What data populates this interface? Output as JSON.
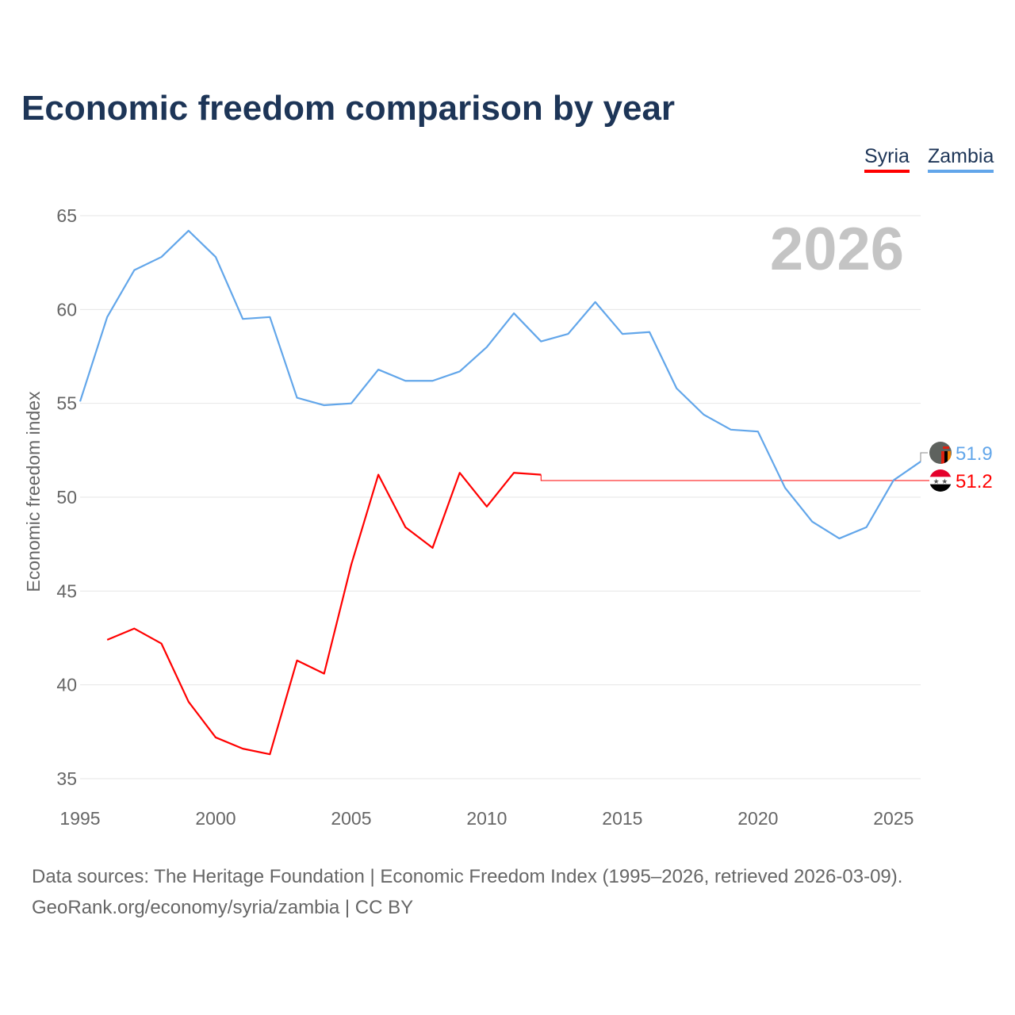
{
  "chart_data": {
    "type": "line",
    "title": "Economic freedom comparison by year",
    "xlabel": "",
    "ylabel": "Economic freedom index",
    "xlim": [
      1995,
      2026
    ],
    "ylim": [
      35,
      65
    ],
    "xticks": [
      1995,
      2000,
      2005,
      2010,
      2015,
      2020,
      2025
    ],
    "yticks": [
      35,
      40,
      45,
      50,
      55,
      60,
      65
    ],
    "grid": true,
    "legend_position": "top-right",
    "year_label": "2026",
    "series": [
      {
        "name": "Syria",
        "color": "#ff0000",
        "end_label": "51.2",
        "x": [
          1996,
          1997,
          1998,
          1999,
          2000,
          2001,
          2002,
          2003,
          2004,
          2005,
          2006,
          2007,
          2008,
          2009,
          2010,
          2011,
          2012
        ],
        "values": [
          42.4,
          43.0,
          42.2,
          39.1,
          37.2,
          36.6,
          36.3,
          41.3,
          40.6,
          46.4,
          51.2,
          48.4,
          47.3,
          51.3,
          49.5,
          51.3,
          51.2
        ]
      },
      {
        "name": "Zambia",
        "color": "#62a6ea",
        "end_label": "51.9",
        "x": [
          1995,
          1996,
          1997,
          1998,
          1999,
          2000,
          2001,
          2002,
          2003,
          2004,
          2005,
          2006,
          2007,
          2008,
          2009,
          2010,
          2011,
          2012,
          2013,
          2014,
          2015,
          2016,
          2017,
          2018,
          2019,
          2020,
          2021,
          2022,
          2023,
          2024,
          2025,
          2026
        ],
        "values": [
          55.1,
          59.6,
          62.1,
          62.8,
          64.2,
          62.8,
          59.5,
          59.6,
          55.3,
          54.9,
          55.0,
          56.8,
          56.2,
          56.2,
          56.7,
          58.0,
          59.8,
          58.3,
          58.7,
          60.4,
          58.7,
          58.8,
          55.8,
          54.4,
          53.6,
          53.5,
          50.5,
          48.7,
          47.8,
          48.4,
          50.9,
          51.9
        ]
      }
    ]
  },
  "source_line1": "Data sources: The Heritage Foundation | Economic Freedom Index (1995–2026, retrieved 2026-03-09).",
  "source_line2": "GeoRank.org/economy/syria/zambia | CC BY"
}
